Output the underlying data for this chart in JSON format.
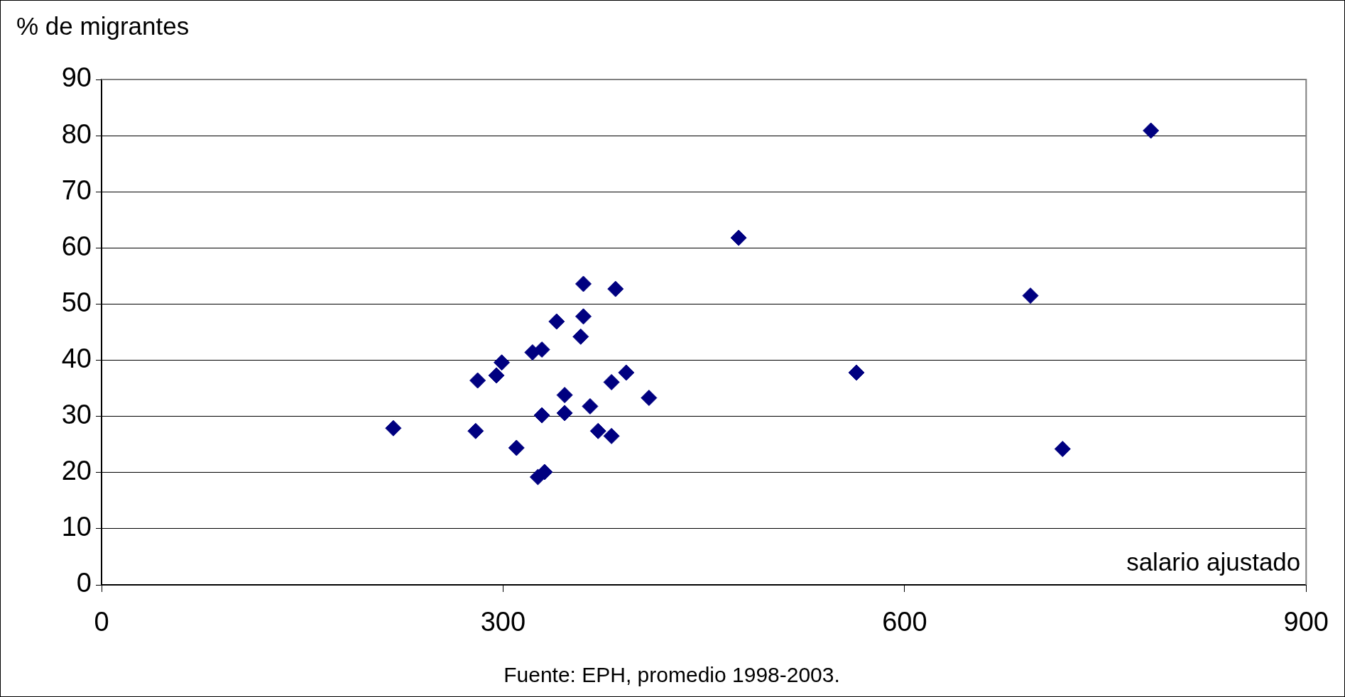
{
  "chart_data": {
    "type": "scatter",
    "ylabel": "% de migrantes",
    "xlabel": "salario ajustado",
    "annotations": [
      "Fuente: EPH, promedio 1998-2003."
    ],
    "x": [
      218,
      279.5,
      281,
      295,
      299,
      310,
      322,
      329,
      326,
      331,
      329,
      340,
      346,
      346,
      358,
      360,
      360,
      365,
      371,
      381,
      381,
      384,
      392,
      409,
      476,
      564,
      694,
      718,
      784
    ],
    "series": [
      {
        "color": "#000080",
        "values": [
          27.9,
          27.4,
          36.4,
          37.3,
          39.6,
          24.4,
          41.4,
          41.9,
          19.2,
          20.1,
          30.2,
          46.9,
          33.8,
          30.6,
          44.2,
          47.8,
          53.6,
          31.8,
          27.4,
          36.1,
          26.5,
          52.7,
          37.8,
          33.3,
          61.8,
          37.8,
          51.5,
          24.2,
          80.9
        ]
      }
    ],
    "xlim": [
      0,
      900
    ],
    "xticks": [
      0,
      300,
      600,
      900
    ],
    "ylim": [
      0,
      90
    ],
    "yticks": [
      0,
      10,
      20,
      30,
      40,
      50,
      60,
      70,
      80,
      90
    ],
    "grid": "y",
    "marker": "diamond",
    "legend": false
  }
}
